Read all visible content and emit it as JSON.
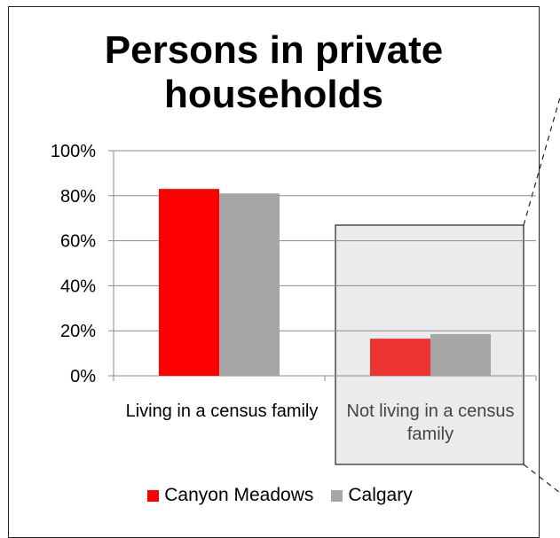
{
  "chart_data": {
    "type": "bar",
    "title": "Persons in private households",
    "categories": [
      "Living in a census family",
      "Not living in a census family"
    ],
    "series": [
      {
        "name": "Canyon Meadows",
        "values": [
          83,
          16.5
        ],
        "color": "#ff0000",
        "highlight_color": "#ee3333"
      },
      {
        "name": "Calgary",
        "values": [
          81,
          18.5
        ],
        "color": "#a6a6a6"
      }
    ],
    "ylim": [
      0,
      100
    ],
    "yticks": [
      "0%",
      "20%",
      "40%",
      "60%",
      "80%",
      "100%"
    ],
    "y_unit": "%",
    "grid": true,
    "legend_position": "bottom",
    "highlighted_category": "Not living in a census family",
    "highlight_fill": "#ebebeb"
  }
}
